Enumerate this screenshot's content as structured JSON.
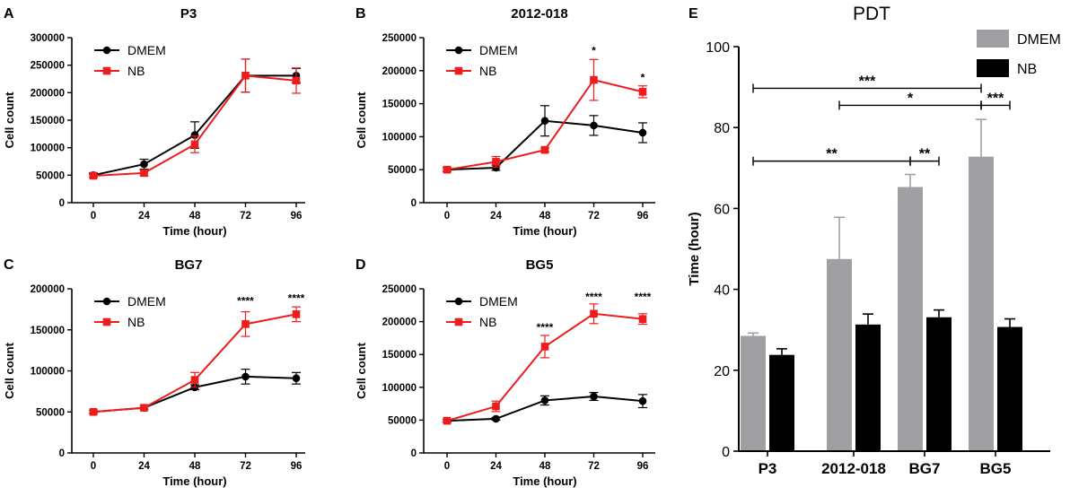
{
  "figure": {
    "panel_letters": [
      "A",
      "B",
      "C",
      "D",
      "E"
    ]
  },
  "colors": {
    "dmem_line": "#000000",
    "nb_line": "#ee1c1c",
    "dmem_bar": "#a0a0a4",
    "nb_bar": "#000000",
    "axis": "#000000"
  },
  "chart_data": [
    {
      "panel": "A",
      "type": "line",
      "title": "P3",
      "xlabel": "Time (hour)",
      "ylabel": "Cell count",
      "x": [
        0,
        24,
        48,
        72,
        96
      ],
      "xticks": [
        "0",
        "24",
        "48",
        "72",
        "96"
      ],
      "ylim": [
        0,
        300000
      ],
      "yticks": [
        "0",
        "50000",
        "100000",
        "150000",
        "200000",
        "250000",
        "300000"
      ],
      "legend": "top-left",
      "series": [
        {
          "name": "DMEM",
          "values": [
            50000,
            70000,
            123000,
            231000,
            231000
          ],
          "errors": [
            4000,
            9000,
            24000,
            30000,
            13000
          ]
        },
        {
          "name": "NB",
          "values": [
            49000,
            54000,
            106000,
            231000,
            222000
          ],
          "errors": [
            3000,
            5000,
            15000,
            30000,
            23000
          ]
        }
      ],
      "annotations": []
    },
    {
      "panel": "B",
      "type": "line",
      "title": "2012-018",
      "xlabel": "Time (hour)",
      "ylabel": "Cell count",
      "x": [
        0,
        24,
        48,
        72,
        96
      ],
      "xticks": [
        "0",
        "24",
        "48",
        "72",
        "96"
      ],
      "ylim": [
        0,
        250000
      ],
      "yticks": [
        "0",
        "50000",
        "100000",
        "150000",
        "200000",
        "250000"
      ],
      "legend": "top-left",
      "series": [
        {
          "name": "DMEM",
          "values": [
            50000,
            53000,
            124000,
            117000,
            106000
          ],
          "errors": [
            3000,
            4000,
            23000,
            15000,
            15000
          ]
        },
        {
          "name": "NB",
          "values": [
            50000,
            62000,
            80000,
            186000,
            168000
          ],
          "errors": [
            3000,
            8000,
            3000,
            31000,
            9000
          ]
        }
      ],
      "annotations": [
        {
          "x": 72,
          "y": 225000,
          "text": "*"
        },
        {
          "x": 96,
          "y": 184000,
          "text": "*"
        }
      ]
    },
    {
      "panel": "C",
      "type": "line",
      "title": "BG7",
      "xlabel": "Time (hour)",
      "ylabel": "Cell count",
      "x": [
        0,
        24,
        48,
        72,
        96
      ],
      "xticks": [
        "0",
        "24",
        "48",
        "72",
        "96"
      ],
      "ylim": [
        0,
        200000
      ],
      "yticks": [
        "0",
        "50000",
        "100000",
        "150000",
        "200000"
      ],
      "legend": "top-left",
      "series": [
        {
          "name": "DMEM",
          "values": [
            50000,
            55000,
            80000,
            93000,
            91000
          ],
          "errors": [
            2000,
            2000,
            3000,
            9000,
            7000
          ]
        },
        {
          "name": "NB",
          "values": [
            50000,
            55000,
            89000,
            157000,
            169000
          ],
          "errors": [
            2000,
            2000,
            9000,
            15000,
            9000
          ]
        }
      ],
      "annotations": [
        {
          "x": 72,
          "y": 181000,
          "text": "****"
        },
        {
          "x": 96,
          "y": 184000,
          "text": "****"
        }
      ]
    },
    {
      "panel": "D",
      "type": "line",
      "title": "BG5",
      "xlabel": "Time (hour)",
      "ylabel": "Cell count",
      "x": [
        0,
        24,
        48,
        72,
        96
      ],
      "xticks": [
        "0",
        "24",
        "48",
        "72",
        "96"
      ],
      "ylim": [
        0,
        250000
      ],
      "yticks": [
        "0",
        "50000",
        "100000",
        "150000",
        "200000",
        "250000"
      ],
      "legend": "top-left",
      "series": [
        {
          "name": "DMEM",
          "values": [
            49000,
            52000,
            80000,
            86000,
            79000
          ],
          "errors": [
            2000,
            2000,
            7000,
            6000,
            10000
          ]
        },
        {
          "name": "NB",
          "values": [
            49000,
            71000,
            162000,
            212000,
            204000
          ],
          "errors": [
            2000,
            8000,
            17000,
            15000,
            8000
          ]
        }
      ],
      "annotations": [
        {
          "x": 48,
          "y": 186000,
          "text": "****"
        },
        {
          "x": 72,
          "y": 232000,
          "text": "****"
        },
        {
          "x": 96,
          "y": 232000,
          "text": "****"
        }
      ]
    },
    {
      "panel": "E",
      "type": "bar",
      "title": "PDT",
      "xlabel": "",
      "ylabel": "Time (hour)",
      "categories": [
        "P3",
        "2012-018",
        "BG7",
        "BG5"
      ],
      "ylim": [
        0,
        100
      ],
      "yticks": [
        "0",
        "20",
        "40",
        "60",
        "80",
        "100"
      ],
      "legend": "top-right",
      "series": [
        {
          "name": "DMEM",
          "values": [
            28.5,
            47.5,
            65.3,
            72.8
          ],
          "errors": [
            0.7,
            10.3,
            3.1,
            9.2
          ]
        },
        {
          "name": "NB",
          "values": [
            23.8,
            31.3,
            33.1,
            30.7
          ],
          "errors": [
            1.5,
            2.6,
            1.8,
            2.0
          ]
        }
      ],
      "significance": [
        {
          "from_category": "P3",
          "from_series": "DMEM",
          "to_category": "BG5",
          "to_series": "DMEM",
          "y": 89.7,
          "text": "***"
        },
        {
          "from_category": "2012-018",
          "from_series": "DMEM",
          "to_category": "BG5",
          "to_series": "DMEM",
          "y": 85.5,
          "text": "*"
        },
        {
          "from_category": "BG5",
          "from_series": "DMEM",
          "to_category": "BG5",
          "to_series": "NB",
          "y": 85.5,
          "text": "***"
        },
        {
          "from_category": "P3",
          "from_series": "DMEM",
          "to_category": "BG7",
          "to_series": "DMEM",
          "y": 71.7,
          "text": "**"
        },
        {
          "from_category": "BG7",
          "from_series": "DMEM",
          "to_category": "BG7",
          "to_series": "NB",
          "y": 71.7,
          "text": "**"
        }
      ]
    }
  ]
}
